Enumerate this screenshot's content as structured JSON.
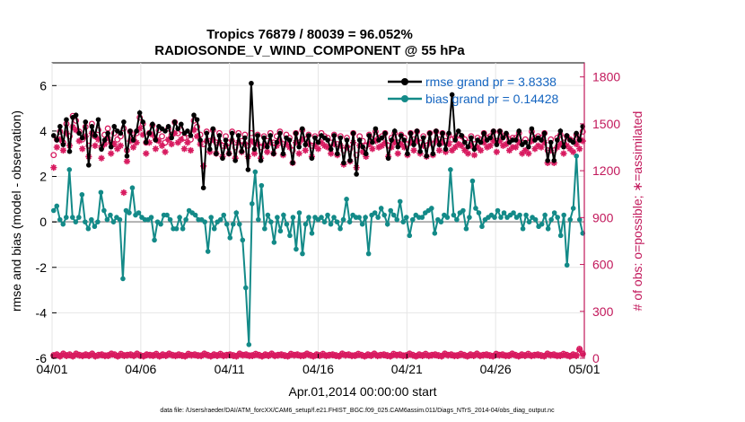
{
  "chart_data": {
    "type": "line",
    "title_line1": "Tropics 76879 / 80039 = 96.052%",
    "title_line2": "RADIOSONDE_V_WIND_COMPONENT @ 55 hPa",
    "xlabel": "Apr.01,2014 00:00:00 start",
    "ylabel_left": "rmse and bias (model - observation)",
    "ylabel_right": "# of obs: o=possible; ∗=assimilated",
    "x_ticks": [
      {
        "day": 0,
        "label": "04/01"
      },
      {
        "day": 5,
        "label": "04/06"
      },
      {
        "day": 10,
        "label": "04/11"
      },
      {
        "day": 15,
        "label": "04/16"
      },
      {
        "day": 20,
        "label": "04/21"
      },
      {
        "day": 25,
        "label": "04/26"
      },
      {
        "day": 30,
        "label": "05/01"
      }
    ],
    "xlim": [
      0,
      30
    ],
    "ylim_left": [
      -6,
      7
    ],
    "yticks_left": [
      -6,
      -4,
      -2,
      0,
      2,
      4,
      6
    ],
    "ylim_right": [
      0,
      1890
    ],
    "yticks_right": [
      0,
      300,
      600,
      900,
      1200,
      1500,
      1800
    ],
    "zero_line_value": 0,
    "legend": [
      {
        "name": "rmse grand pr = 3.8338",
        "color": "#000000"
      },
      {
        "name": "bias grand pr = 0.14428",
        "color": "#138a88"
      }
    ],
    "series": [
      {
        "name": "rmse",
        "axis": "left",
        "color": "#000000",
        "values": [
          3.8,
          3.6,
          4.2,
          3.4,
          4.5,
          3.1,
          4.6,
          4.7,
          3.9,
          3.7,
          4.4,
          2.5,
          4.2,
          3.8,
          4.5,
          3.2,
          3.6,
          3.9,
          3.3,
          4.2,
          4.0,
          3.9,
          4.4,
          2.9,
          4.0,
          3.6,
          4.0,
          4.8,
          4.4,
          3.5,
          3.9,
          4.3,
          3.6,
          4.2,
          4.1,
          4.0,
          4.2,
          3.7,
          4.4,
          4.1,
          4.3,
          3.9,
          4.0,
          3.8,
          4.7,
          4.5,
          3.6,
          1.5,
          3.9,
          3.2,
          4.1,
          3.0,
          3.8,
          2.8,
          3.6,
          3.0,
          3.9,
          2.7,
          3.8,
          3.1,
          3.7,
          2.3,
          6.1,
          3.2,
          3.8,
          2.7,
          3.7,
          3.3,
          3.8,
          3.0,
          3.5,
          3.9,
          3.0,
          3.7,
          3.6,
          2.6,
          3.9,
          3.3,
          4.1,
          3.4,
          3.8,
          2.8,
          3.7,
          3.5,
          3.8,
          3.7,
          3.6,
          3.2,
          3.8,
          3.0,
          3.7,
          2.6,
          3.6,
          2.7,
          3.9,
          2.1,
          3.6,
          3.3,
          3.0,
          3.8,
          3.5,
          4.1,
          3.6,
          3.7,
          3.9,
          2.8,
          3.6,
          4.0,
          3.3,
          3.8,
          3.6,
          3.0,
          3.9,
          3.4,
          4.0,
          3.1,
          3.7,
          2.9,
          3.9,
          3.0,
          4.0,
          3.4,
          3.9,
          3.2,
          3.9,
          5.6,
          3.6,
          4.0,
          3.8,
          3.5,
          3.3,
          3.7,
          3.2,
          3.6,
          3.5,
          3.9,
          3.6,
          3.7,
          4.0,
          3.4,
          4.0,
          3.7,
          3.9,
          3.5,
          3.6,
          3.6,
          4.0,
          3.4,
          3.5,
          3.3,
          4.1,
          3.6,
          3.7,
          3.6,
          3.9,
          2.7,
          3.5,
          2.7,
          3.6,
          4.0,
          3.3,
          3.8,
          3.6,
          3.5,
          3.9,
          3.6,
          4.2
        ]
      },
      {
        "name": "bias",
        "axis": "left",
        "color": "#138a88",
        "values": [
          0.5,
          0.7,
          0.1,
          -0.1,
          0.2,
          2.3,
          0.2,
          0.0,
          0.2,
          1.2,
          0.0,
          -0.3,
          0.1,
          -0.2,
          0.0,
          1.3,
          0.5,
          0.1,
          0.3,
          0.0,
          0.2,
          0.1,
          -2.5,
          0.5,
          0.4,
          1.5,
          0.3,
          0.4,
          0.2,
          0.1,
          0.1,
          0.2,
          -0.8,
          0.0,
          -0.1,
          0.3,
          0.3,
          0.1,
          -0.3,
          -0.3,
          0.2,
          -0.3,
          0.1,
          0.5,
          0.4,
          0.3,
          0.1,
          0.1,
          0.0,
          -1.3,
          0.2,
          -0.3,
          0.0,
          0.1,
          0.3,
          -0.1,
          -0.7,
          -0.1,
          0.4,
          -0.1,
          -0.8,
          -2.9,
          -5.4,
          0.8,
          2.2,
          0.1,
          1.6,
          -0.3,
          0.3,
          0.0,
          -0.9,
          0.2,
          -0.4,
          0.3,
          -0.1,
          -0.6,
          0.2,
          -1.2,
          0.4,
          -1.4,
          -0.1,
          0.2,
          -0.5,
          0.2,
          0.1,
          0.2,
          0.0,
          0.3,
          -0.1,
          0.2,
          0.0,
          -0.3,
          0.1,
          1.0,
          0.0,
          0.3,
          0.2,
          0.2,
          -0.1,
          0.2,
          -1.4,
          0.3,
          0.4,
          0.2,
          0.6,
          0.3,
          -0.1,
          0.5,
          0.3,
          0.1,
          0.9,
          0.0,
          0.2,
          -0.6,
          0.1,
          0.3,
          0.2,
          0.2,
          0.4,
          0.5,
          0.6,
          -0.5,
          0.1,
          0.0,
          0.3,
          0.2,
          2.3,
          0.3,
          0.1,
          0.4,
          0.5,
          -0.3,
          0.2,
          1.8,
          0.6,
          0.4,
          -0.2,
          0.1,
          0.2,
          0.3,
          0.2,
          0.5,
          0.2,
          0.4,
          0.2,
          0.3,
          0.4,
          0.2,
          0.3,
          -0.3,
          0.3,
          0.0,
          0.2,
          0.1,
          -0.2,
          -0.1,
          0.3,
          -0.3,
          0.1,
          0.4,
          0.2,
          -0.6,
          0.3,
          -1.9,
          0.1,
          0.6,
          2.9,
          0.1,
          -0.5
        ]
      },
      {
        "name": "obs_possible",
        "axis": "right",
        "marker": "o",
        "color": "#d81b60",
        "values": [
          1300,
          1400,
          1450,
          1380,
          1500,
          1420,
          1550,
          1520,
          1450,
          1400,
          1480,
          1360,
          1500,
          1420,
          1460,
          1350,
          1430,
          1470,
          1380,
          1440,
          1400,
          1420,
          1470,
          1330,
          1450,
          1410,
          1440,
          1540,
          1500,
          1380,
          1440,
          1490,
          1400,
          1460,
          1420,
          1380,
          1470,
          1430,
          1510,
          1440,
          1460,
          1410,
          1440,
          1400,
          1520,
          1480,
          1430,
          1370,
          1450,
          1390,
          1460,
          1380,
          1440,
          1360,
          1420,
          1380,
          1450,
          1350,
          1440,
          1390,
          1430,
          1360,
          1440,
          1380,
          1430,
          1350,
          1420,
          1390,
          1440,
          1380,
          1420,
          1450,
          1370,
          1430,
          1410,
          1330,
          1440,
          1380,
          1460,
          1400,
          1430,
          1360,
          1420,
          1410,
          1440,
          1420,
          1410,
          1380,
          1430,
          1370,
          1420,
          1330,
          1410,
          1340,
          1440,
          1300,
          1420,
          1390,
          1360,
          1430,
          1400,
          1450,
          1410,
          1420,
          1440,
          1360,
          1410,
          1440,
          1380,
          1430,
          1410,
          1370,
          1440,
          1400,
          1450,
          1380,
          1420,
          1360,
          1440,
          1370,
          1450,
          1400,
          1440,
          1390,
          1430,
          1400,
          1410,
          1430,
          1420,
          1400,
          1380,
          1420,
          1370,
          1410,
          1400,
          1440,
          1410,
          1420,
          1450,
          1390,
          1450,
          1420,
          1430,
          1400,
          1410,
          1410,
          1440,
          1380,
          1400,
          1380,
          1450,
          1410,
          1420,
          1410,
          1440,
          1330,
          1400,
          1330,
          1410,
          1430,
          1380,
          1420,
          1400,
          1390,
          1430,
          1400,
          1450
        ]
      },
      {
        "name": "obs_assimilated",
        "axis": "right",
        "marker": "*",
        "color": "#d81b60",
        "values": [
          1220,
          1350,
          1400,
          1330,
          1440,
          1360,
          1480,
          1460,
          1390,
          1340,
          1420,
          1290,
          1440,
          1360,
          1400,
          1280,
          1370,
          1410,
          1310,
          1370,
          1340,
          1360,
          1060,
          1260,
          1390,
          1350,
          1380,
          1470,
          1430,
          1310,
          1380,
          1430,
          1340,
          1390,
          1360,
          1320,
          1400,
          1370,
          1440,
          1380,
          1400,
          1340,
          1380,
          1330,
          1460,
          1420,
          1370,
          1230,
          1390,
          1320,
          1400,
          1310,
          1380,
          1290,
          1360,
          1310,
          1390,
          1280,
          1380,
          1320,
          1370,
          1290,
          1390,
          1310,
          1370,
          1280,
          1360,
          1320,
          1380,
          1310,
          1360,
          1390,
          1300,
          1370,
          1350,
          1250,
          1380,
          1310,
          1400,
          1330,
          1370,
          1290,
          1360,
          1340,
          1380,
          1360,
          1350,
          1310,
          1370,
          1300,
          1360,
          1240,
          1350,
          1260,
          1380,
          1220,
          1360,
          1320,
          1290,
          1370,
          1340,
          1390,
          1350,
          1360,
          1380,
          1290,
          1350,
          1380,
          1310,
          1370,
          1350,
          1300,
          1380,
          1330,
          1390,
          1310,
          1360,
          1290,
          1380,
          1300,
          1390,
          1330,
          1380,
          1320,
          1370,
          1330,
          1350,
          1370,
          1360,
          1330,
          1310,
          1360,
          1300,
          1350,
          1330,
          1380,
          1350,
          1360,
          1390,
          1320,
          1390,
          1360,
          1370,
          1330,
          1350,
          1350,
          1380,
          1310,
          1330,
          1310,
          1390,
          1340,
          1360,
          1350,
          1380,
          1250,
          1330,
          1250,
          1350,
          1370,
          1310,
          1360,
          1340,
          1320,
          1370,
          1340,
          1390
        ]
      },
      {
        "name": "obs_bottom_possible",
        "axis": "right",
        "marker": "o",
        "color": "#d81b60",
        "values": [
          20,
          25,
          15,
          30,
          20,
          25,
          15,
          30,
          22,
          18,
          25,
          20,
          30,
          15,
          22,
          25,
          18,
          20,
          30,
          25,
          15,
          28,
          20,
          22,
          25,
          18,
          30,
          20,
          15,
          25,
          22,
          20,
          28,
          15,
          25,
          20,
          30,
          22,
          18,
          25,
          20,
          15,
          28,
          22,
          25,
          20,
          18,
          30,
          22,
          15,
          25,
          20,
          28,
          18,
          22,
          25,
          20,
          15,
          30,
          22,
          25,
          18,
          20,
          28,
          22,
          15,
          25,
          20,
          30,
          18,
          22,
          25,
          20,
          15,
          28,
          22,
          25,
          18,
          20,
          30,
          22,
          15,
          25,
          20,
          28,
          18,
          22,
          25,
          20,
          15,
          30,
          22,
          25,
          18,
          20,
          28,
          22,
          15,
          25,
          20,
          30,
          18,
          22,
          25,
          20,
          15,
          28,
          22,
          25,
          18,
          20,
          30,
          22,
          15,
          25,
          20,
          28,
          18,
          22,
          25,
          20,
          15,
          30,
          22,
          25,
          18,
          20,
          28,
          22,
          15,
          25,
          20,
          30,
          18,
          22,
          25,
          20,
          15,
          28,
          22,
          25,
          18,
          20,
          30,
          22,
          15,
          25,
          20,
          28,
          18,
          22,
          25,
          20,
          15,
          30,
          22,
          25,
          18,
          20,
          28,
          22,
          15,
          25,
          20,
          60,
          30
        ]
      },
      {
        "name": "obs_bottom_assimilated",
        "axis": "right",
        "marker": "*",
        "color": "#d81b60",
        "values": [
          15,
          20,
          12,
          25,
          15,
          20,
          12,
          25,
          18,
          14,
          20,
          15,
          25,
          12,
          18,
          20,
          14,
          15,
          25,
          20,
          12,
          22,
          15,
          18,
          20,
          14,
          25,
          15,
          12,
          20,
          18,
          15,
          22,
          12,
          20,
          15,
          25,
          18,
          14,
          20,
          15,
          12,
          22,
          18,
          20,
          15,
          14,
          25,
          18,
          12,
          20,
          15,
          22,
          14,
          18,
          20,
          15,
          12,
          25,
          18,
          20,
          14,
          15,
          22,
          18,
          12,
          20,
          15,
          25,
          14,
          18,
          20,
          15,
          12,
          22,
          18,
          20,
          14,
          15,
          25,
          18,
          12,
          20,
          15,
          22,
          14,
          18,
          20,
          15,
          12,
          25,
          18,
          20,
          14,
          15,
          22,
          18,
          12,
          20,
          15,
          25,
          14,
          18,
          20,
          15,
          12,
          22,
          18,
          20,
          14,
          15,
          25,
          18,
          12,
          20,
          15,
          22,
          14,
          18,
          20,
          15,
          12,
          25,
          18,
          20,
          14,
          15,
          22,
          18,
          12,
          20,
          15,
          25,
          14,
          18,
          20,
          15,
          12,
          22,
          18,
          20,
          14,
          15,
          25,
          18,
          12,
          20,
          15,
          22,
          14,
          18,
          20,
          15,
          12,
          25,
          18,
          20,
          14,
          15,
          22,
          18,
          12,
          20,
          15,
          55,
          25
        ]
      }
    ],
    "footnote": "data file: /Users/raeder/DAI/ATM_forcXX/CAM6_setup/f.e21.FHIST_BGC.f09_025.CAM6assim.011/Diags_NTrS_2014-04/obs_diag_output.nc"
  }
}
